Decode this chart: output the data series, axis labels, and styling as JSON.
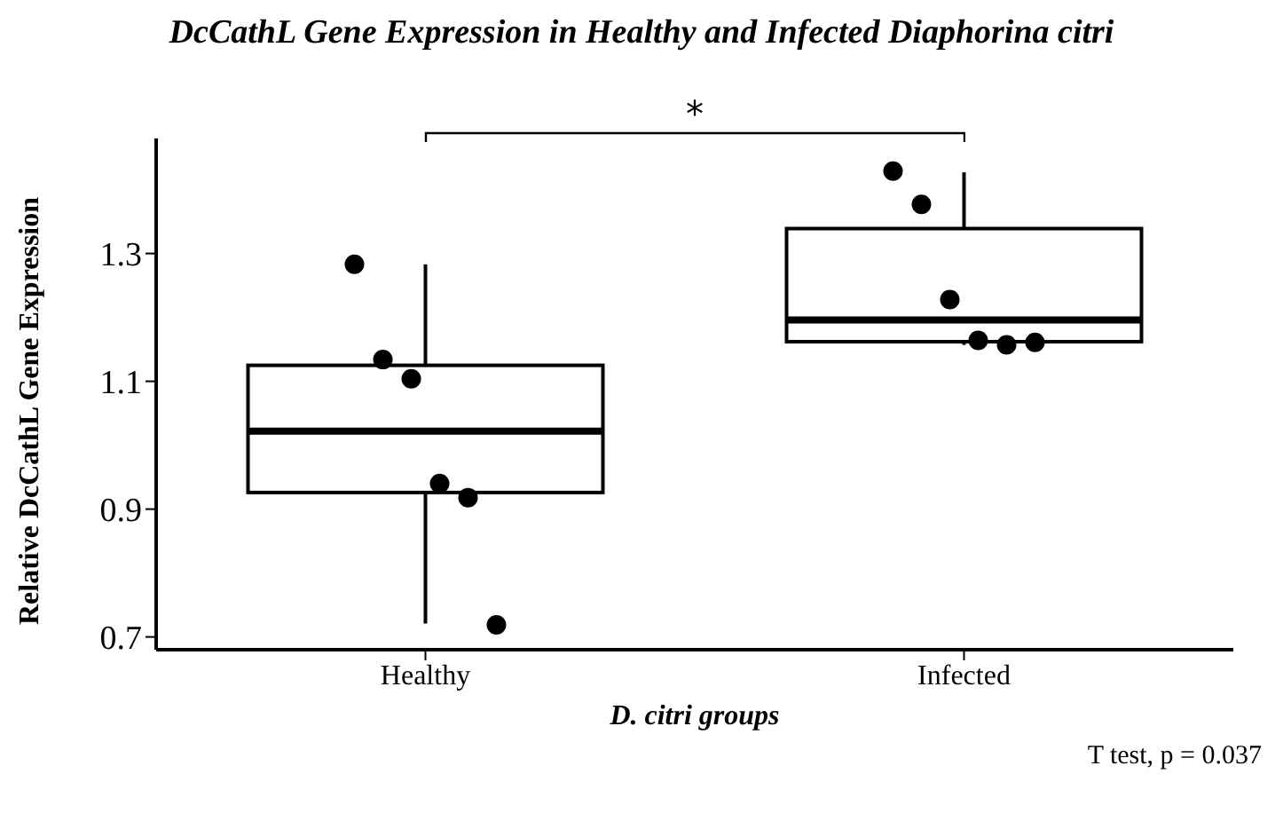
{
  "chart_data": {
    "type": "box",
    "title": "DcCathL Gene Expression in Healthy and Infected Diaphorina citri",
    "xlabel": "D. citri groups",
    "ylabel": "Relative DcCathL Gene Expression",
    "categories": [
      "Healthy",
      "Infected"
    ],
    "boxes": [
      {
        "low": 0.721,
        "q1": 0.926,
        "median": 1.022,
        "q3": 1.125,
        "high": 1.283
      },
      {
        "low": 1.157,
        "q1": 1.162,
        "median": 1.196,
        "q3": 1.339,
        "high": 1.427
      }
    ],
    "series": [
      {
        "type": "scatter",
        "color": "#000000",
        "x": [
          "Healthy",
          "Healthy",
          "Healthy",
          "Healthy",
          "Healthy",
          "Healthy",
          "Infected",
          "Infected",
          "Infected",
          "Infected",
          "Infected",
          "Infected"
        ],
        "values": [
          1.283,
          1.134,
          1.104,
          0.94,
          0.918,
          0.719,
          1.429,
          1.377,
          1.228,
          1.164,
          1.157,
          1.161
        ]
      }
    ],
    "ylim": [
      0.68,
      1.48
    ],
    "yticks": [
      0.7,
      0.9,
      1.1,
      1.3
    ],
    "annotations": [
      "*",
      "T test, p = 0.037"
    ]
  }
}
